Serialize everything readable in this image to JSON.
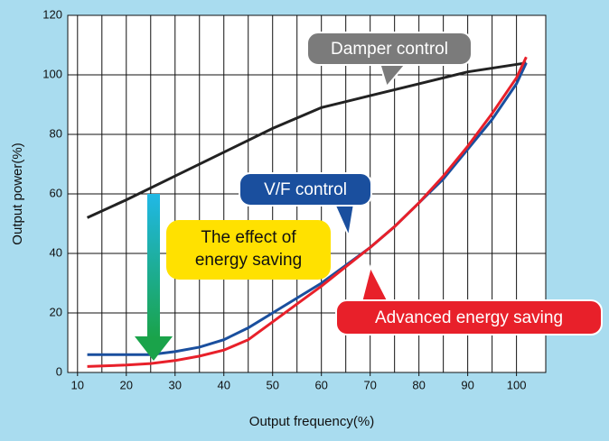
{
  "chart_data": {
    "type": "line",
    "xlabel": "Output frequency(%)",
    "ylabel": "Output power(%)",
    "xlim": [
      8,
      106
    ],
    "ylim": [
      0,
      120
    ],
    "xticks": [
      10,
      20,
      30,
      40,
      50,
      60,
      70,
      80,
      90,
      100
    ],
    "yticks": [
      0,
      20,
      40,
      60,
      80,
      100,
      120
    ],
    "xgrid": [
      10,
      15,
      20,
      25,
      30,
      35,
      40,
      45,
      50,
      55,
      60,
      65,
      70,
      75,
      80,
      85,
      90,
      95,
      100
    ],
    "grid": true,
    "series": [
      {
        "name": "Damper control",
        "color": "#222222",
        "x": [
          12,
          20,
          30,
          40,
          50,
          60,
          70,
          80,
          90,
          100,
          102
        ],
        "values": [
          52,
          58,
          66,
          74,
          82,
          89,
          93,
          97,
          101,
          103.5,
          104
        ]
      },
      {
        "name": "V/F control",
        "color": "#1a4f9e",
        "x": [
          12,
          20,
          25,
          30,
          35,
          40,
          45,
          50,
          55,
          60,
          65,
          70,
          75,
          80,
          85,
          90,
          95,
          100,
          102
        ],
        "values": [
          6,
          6,
          6,
          7,
          8.5,
          11,
          15,
          20,
          25,
          30,
          36,
          42,
          49,
          57,
          65,
          75,
          85,
          97,
          104
        ]
      },
      {
        "name": "Advanced energy saving",
        "color": "#e8202a",
        "x": [
          12,
          20,
          25,
          30,
          35,
          40,
          45,
          50,
          55,
          60,
          65,
          70,
          75,
          80,
          85,
          90,
          95,
          100,
          102
        ],
        "values": [
          2,
          2.5,
          3,
          4,
          5.5,
          7.5,
          11,
          17,
          23,
          29,
          35.5,
          42,
          49,
          57,
          66,
          76,
          87,
          99,
          106
        ]
      }
    ],
    "annotation": [
      "The effect of",
      "energy saving"
    ]
  }
}
